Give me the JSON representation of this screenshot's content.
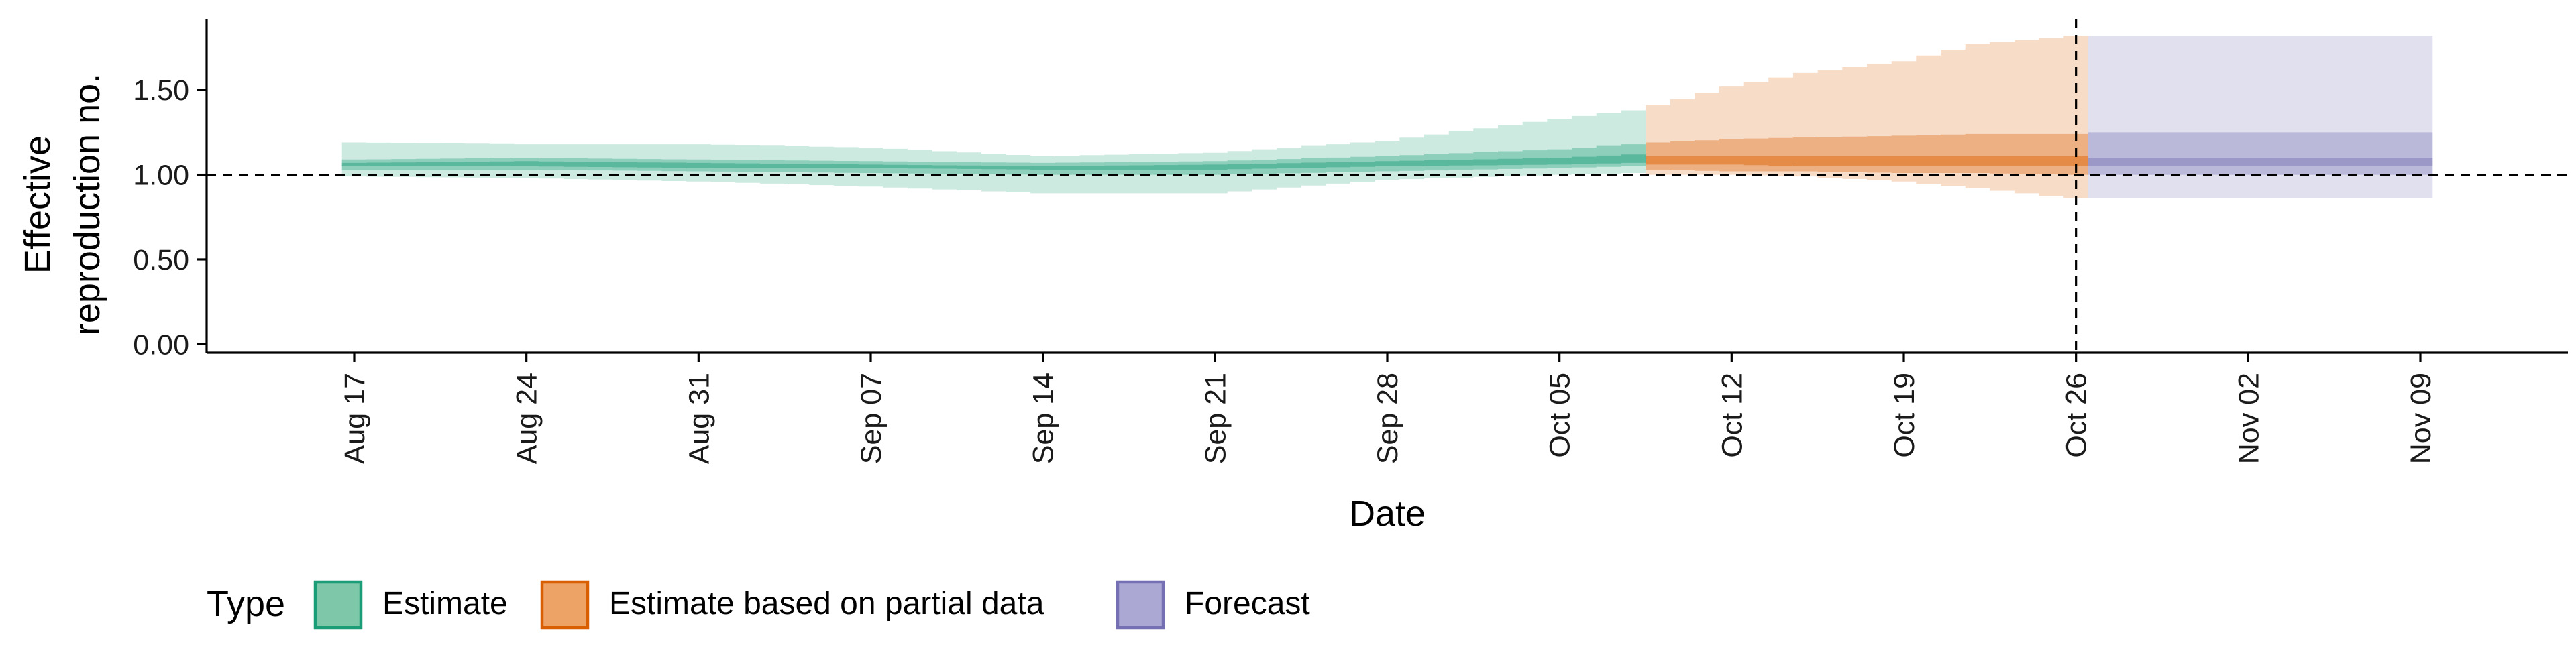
{
  "chart_data": {
    "type": "area",
    "xlabel": "Date",
    "ylabel": [
      "Effective",
      "reproduction no."
    ],
    "ylim": [
      -0.05,
      1.92
    ],
    "yticks": [
      0.0,
      0.5,
      1.0,
      1.5
    ],
    "ytick_labels": [
      "0.00",
      "0.50",
      "1.00",
      "1.50"
    ],
    "xlim": [
      "2020-08-11",
      "2020-11-15"
    ],
    "xticks": [
      "2020-08-17",
      "2020-08-24",
      "2020-08-31",
      "2020-09-07",
      "2020-09-14",
      "2020-09-21",
      "2020-09-28",
      "2020-10-05",
      "2020-10-12",
      "2020-10-19",
      "2020-10-26",
      "2020-11-02",
      "2020-11-09"
    ],
    "xtick_labels": [
      "Aug 17",
      "Aug 24",
      "Aug 31",
      "Sep 07",
      "Sep 14",
      "Sep 21",
      "Sep 28",
      "Oct 05",
      "Oct 12",
      "Oct 19",
      "Oct 26",
      "Nov 02",
      "Nov 09"
    ],
    "reference_line": {
      "y": 1.0,
      "style": "dashed"
    },
    "vertical_line": {
      "x": "2020-10-26",
      "style": "dashed"
    },
    "legend": {
      "title": "Type",
      "position": "bottom",
      "entries": [
        {
          "label": "Estimate",
          "fill": "#7fc7a9",
          "stroke": "#1b9e77"
        },
        {
          "label": "Estimate based on partial data",
          "fill": "#eda366",
          "stroke": "#d95f02"
        },
        {
          "label": "Forecast",
          "fill": "#aca8d4",
          "stroke": "#7570b3"
        }
      ]
    },
    "series": [
      {
        "name": "Estimate",
        "color": "#1b9e77",
        "x": [
          "2020-08-17",
          "2020-08-24",
          "2020-08-31",
          "2020-09-07",
          "2020-09-14",
          "2020-09-21",
          "2020-09-28",
          "2020-10-05",
          "2020-10-08"
        ],
        "bands": [
          {
            "level": "90%",
            "lower": [
              0.99,
              0.98,
              0.96,
              0.93,
              0.89,
              0.89,
              0.97,
              1.0,
              1.01
            ],
            "upper": [
              1.19,
              1.18,
              1.18,
              1.16,
              1.11,
              1.13,
              1.2,
              1.33,
              1.38
            ]
          },
          {
            "level": "50%",
            "lower": [
              1.03,
              1.03,
              1.02,
              1.01,
              1.0,
              1.0,
              1.02,
              1.04,
              1.05
            ],
            "upper": [
              1.09,
              1.1,
              1.09,
              1.08,
              1.07,
              1.08,
              1.11,
              1.15,
              1.18
            ]
          },
          {
            "level": "20%",
            "lower": [
              1.05,
              1.05,
              1.04,
              1.04,
              1.03,
              1.03,
              1.05,
              1.06,
              1.07
            ],
            "upper": [
              1.07,
              1.08,
              1.07,
              1.06,
              1.05,
              1.06,
              1.08,
              1.1,
              1.12
            ]
          }
        ]
      },
      {
        "name": "Estimate based on partial data",
        "color": "#d95f02",
        "x": [
          "2020-10-09",
          "2020-10-12",
          "2020-10-15",
          "2020-10-19",
          "2020-10-22",
          "2020-10-26"
        ],
        "bands": [
          {
            "level": "90%",
            "lower": [
              1.0,
              1.0,
              0.99,
              0.96,
              0.92,
              0.86
            ],
            "upper": [
              1.41,
              1.52,
              1.6,
              1.67,
              1.77,
              1.82
            ]
          },
          {
            "level": "50%",
            "lower": [
              1.03,
              1.02,
              1.02,
              1.01,
              1.01,
              1.0
            ],
            "upper": [
              1.19,
              1.21,
              1.22,
              1.23,
              1.24,
              1.24
            ]
          },
          {
            "level": "20%",
            "lower": [
              1.06,
              1.06,
              1.05,
              1.05,
              1.05,
              1.05
            ],
            "upper": [
              1.11,
              1.11,
              1.11,
              1.11,
              1.11,
              1.11
            ]
          }
        ]
      },
      {
        "name": "Forecast",
        "color": "#7570b3",
        "x": [
          "2020-10-27",
          "2020-11-09"
        ],
        "bands": [
          {
            "level": "90%",
            "lower": [
              0.86,
              0.86
            ],
            "upper": [
              1.82,
              1.82
            ]
          },
          {
            "level": "50%",
            "lower": [
              1.0,
              1.0
            ],
            "upper": [
              1.25,
              1.25
            ]
          },
          {
            "level": "20%",
            "lower": [
              1.05,
              1.05
            ],
            "upper": [
              1.1,
              1.1
            ]
          }
        ]
      }
    ]
  }
}
